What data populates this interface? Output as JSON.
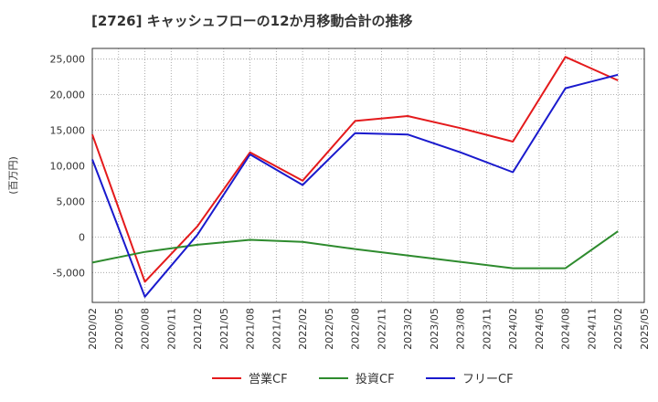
{
  "chart_data": {
    "type": "line",
    "title": "[2726]  キャッシュフローの12か月移動合計の推移",
    "ylabel": "(百万円)",
    "xlabel": "",
    "ylim": [
      -9200,
      26500
    ],
    "yticks": [
      25000,
      20000,
      15000,
      10000,
      5000,
      0,
      -5000
    ],
    "ytick_labels": [
      "25,000",
      "20,000",
      "15,000",
      "10,000",
      "5,000",
      "0",
      "-5,000"
    ],
    "x_tick_labels": [
      "2020/02",
      "2020/05",
      "2020/08",
      "2020/11",
      "2021/02",
      "2021/05",
      "2021/08",
      "2021/11",
      "2022/02",
      "2022/05",
      "2022/08",
      "2022/11",
      "2023/02",
      "2023/05",
      "2023/08",
      "2023/11",
      "2024/02",
      "2024/05",
      "2024/08",
      "2024/11",
      "2025/02",
      "2025/05"
    ],
    "grid": true,
    "legend_position": "bottom",
    "series": [
      {
        "name": "営業CF",
        "color": "#e41a1c",
        "x": [
          0,
          2,
          4,
          6,
          8,
          10,
          12,
          14,
          16,
          18,
          20
        ],
        "values": [
          14400,
          -6300,
          1500,
          11900,
          7900,
          16300,
          17000,
          15300,
          13400,
          25300,
          22000
        ]
      },
      {
        "name": "投資CF",
        "color": "#2e8b2e",
        "x": [
          0,
          2,
          4,
          6,
          8,
          10,
          12,
          14,
          16,
          18,
          20
        ],
        "values": [
          -3600,
          -2100,
          -1100,
          -400,
          -700,
          -1700,
          -2600,
          -3500,
          -4400,
          -4400,
          800
        ]
      },
      {
        "name": "フリーCF",
        "color": "#1a1acd",
        "x": [
          0,
          2,
          4,
          6,
          8,
          10,
          12,
          14,
          16,
          18,
          20
        ],
        "values": [
          10900,
          -8400,
          300,
          11600,
          7300,
          14600,
          14400,
          11900,
          9100,
          20900,
          22800
        ]
      }
    ]
  }
}
